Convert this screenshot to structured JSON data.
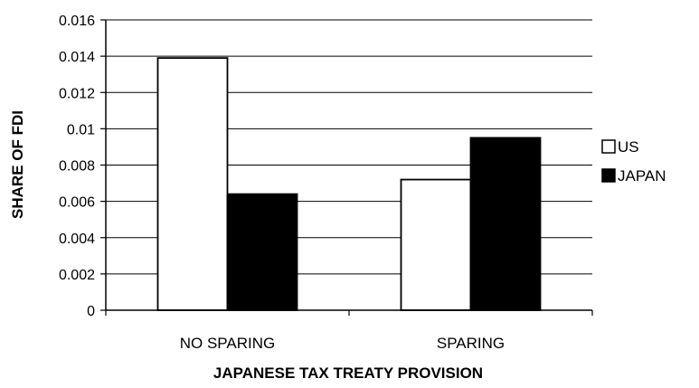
{
  "chart_data": {
    "type": "bar",
    "title": "",
    "xlabel": "JAPANESE TAX TREATY PROVISION",
    "ylabel": "SHARE OF FDI",
    "categories": [
      "NO SPARING",
      "SPARING"
    ],
    "series": [
      {
        "name": "US",
        "values": [
          0.0139,
          0.0072
        ],
        "color": "#ffffff"
      },
      {
        "name": "JAPAN",
        "values": [
          0.0064,
          0.0095
        ],
        "color": "#000000"
      }
    ],
    "ylim": [
      0,
      0.016
    ],
    "yticks": [
      "0",
      "0.002",
      "0.004",
      "0.006",
      "0.008",
      "0.01",
      "0.012",
      "0.014",
      "0.016"
    ],
    "grid": true,
    "legend_position": "right"
  }
}
